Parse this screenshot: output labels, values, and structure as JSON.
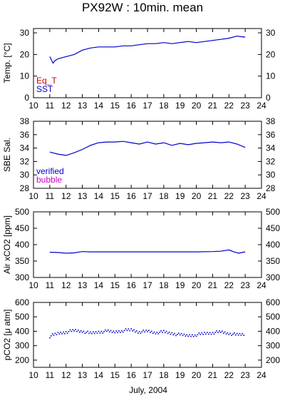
{
  "title": "PX92W : 10min. mean",
  "xlabel": "July, 2004",
  "colors": {
    "sst": "#0000cc",
    "eq_t": "#cc0000",
    "verified": "#0000cc",
    "bubble": "#cc00cc",
    "series": "#0000cc"
  },
  "chart_data": [
    {
      "type": "line",
      "ylabel": "Temp. [°C]",
      "xlim": [
        10,
        24
      ],
      "ylim": [
        0,
        32
      ],
      "yticks": [
        0,
        10,
        20,
        30
      ],
      "xticks": [
        10,
        11,
        12,
        13,
        14,
        15,
        16,
        17,
        18,
        19,
        20,
        21,
        22,
        23,
        24
      ],
      "legend": [
        {
          "name": "Eq_T",
          "color": "#cc0000"
        },
        {
          "name": "SST",
          "color": "#0000cc"
        }
      ],
      "series": [
        {
          "name": "SST",
          "x": [
            11.0,
            11.2,
            11.3,
            11.5,
            12.0,
            12.5,
            13.0,
            13.5,
            14.0,
            14.5,
            15.0,
            15.5,
            16.0,
            16.5,
            17.0,
            17.5,
            18.0,
            18.5,
            19.0,
            19.5,
            20.0,
            20.5,
            21.0,
            21.5,
            22.0,
            22.5,
            23.0
          ],
          "y": [
            19,
            16,
            17,
            18,
            19,
            20,
            22,
            23,
            23.5,
            23.5,
            23.5,
            24,
            24,
            24.5,
            25,
            25,
            25.5,
            25,
            25.5,
            26,
            25.5,
            26,
            26.5,
            27,
            27.5,
            28.5,
            28
          ]
        }
      ]
    },
    {
      "type": "line",
      "ylabel": "SBE Sal.",
      "xlim": [
        10,
        24
      ],
      "ylim": [
        28,
        38
      ],
      "yticks": [
        28,
        30,
        32,
        34,
        36,
        38
      ],
      "xticks": [
        10,
        11,
        12,
        13,
        14,
        15,
        16,
        17,
        18,
        19,
        20,
        21,
        22,
        23,
        24
      ],
      "legend": [
        {
          "name": "verified",
          "color": "#0000cc"
        },
        {
          "name": "bubble",
          "color": "#cc00cc"
        }
      ],
      "series": [
        {
          "name": "verified",
          "x": [
            11.0,
            11.5,
            12.0,
            12.5,
            13.0,
            13.5,
            14.0,
            14.5,
            15.0,
            15.5,
            16.0,
            16.5,
            17.0,
            17.5,
            18.0,
            18.5,
            19.0,
            19.5,
            20.0,
            20.5,
            21.0,
            21.5,
            22.0,
            22.5,
            23.0
          ],
          "y": [
            33.4,
            33.1,
            32.9,
            33.3,
            33.8,
            34.4,
            34.8,
            34.9,
            34.9,
            35.0,
            34.8,
            34.6,
            34.9,
            34.6,
            34.8,
            34.4,
            34.7,
            34.5,
            34.7,
            34.8,
            34.9,
            34.8,
            34.9,
            34.6,
            34.1
          ]
        }
      ]
    },
    {
      "type": "line",
      "ylabel": "Air xCO2 [ppm]",
      "xlim": [
        10,
        24
      ],
      "ylim": [
        300,
        500
      ],
      "yticks": [
        300,
        350,
        400,
        450,
        500
      ],
      "xticks": [
        10,
        11,
        12,
        13,
        14,
        15,
        16,
        17,
        18,
        19,
        20,
        21,
        22,
        23,
        24
      ],
      "series": [
        {
          "name": "Air xCO2",
          "x": [
            11.0,
            11.5,
            12.0,
            12.5,
            13.0,
            13.5,
            14.0,
            15.0,
            16.0,
            17.0,
            18.0,
            19.0,
            20.0,
            21.0,
            21.5,
            22.0,
            22.3,
            22.6,
            22.8,
            23.0
          ],
          "y": [
            377,
            376,
            374,
            375,
            379,
            378,
            378,
            378,
            378,
            378,
            378,
            378,
            378,
            379,
            380,
            384,
            378,
            374,
            376,
            378
          ]
        }
      ]
    },
    {
      "type": "scatter",
      "ylabel": "pCO2 [μ atm]",
      "xlim": [
        10,
        24
      ],
      "ylim": [
        150,
        600
      ],
      "yticks": [
        200,
        300,
        400,
        500,
        600
      ],
      "xticks": [
        10,
        11,
        12,
        13,
        14,
        15,
        16,
        17,
        18,
        19,
        20,
        21,
        22,
        23,
        24
      ],
      "series": [
        {
          "name": "pCO2",
          "x": [
            11.0,
            11.5,
            12.0,
            12.5,
            13.0,
            13.5,
            14.0,
            14.5,
            15.0,
            15.5,
            16.0,
            16.5,
            17.0,
            17.5,
            18.0,
            18.5,
            19.0,
            19.5,
            20.0,
            20.5,
            21.0,
            21.5,
            22.0,
            22.5,
            23.0
          ],
          "y": [
            365,
            385,
            395,
            405,
            400,
            385,
            395,
            400,
            395,
            405,
            410,
            395,
            400,
            390,
            395,
            385,
            375,
            370,
            375,
            385,
            390,
            395,
            385,
            375,
            380
          ]
        }
      ]
    }
  ]
}
